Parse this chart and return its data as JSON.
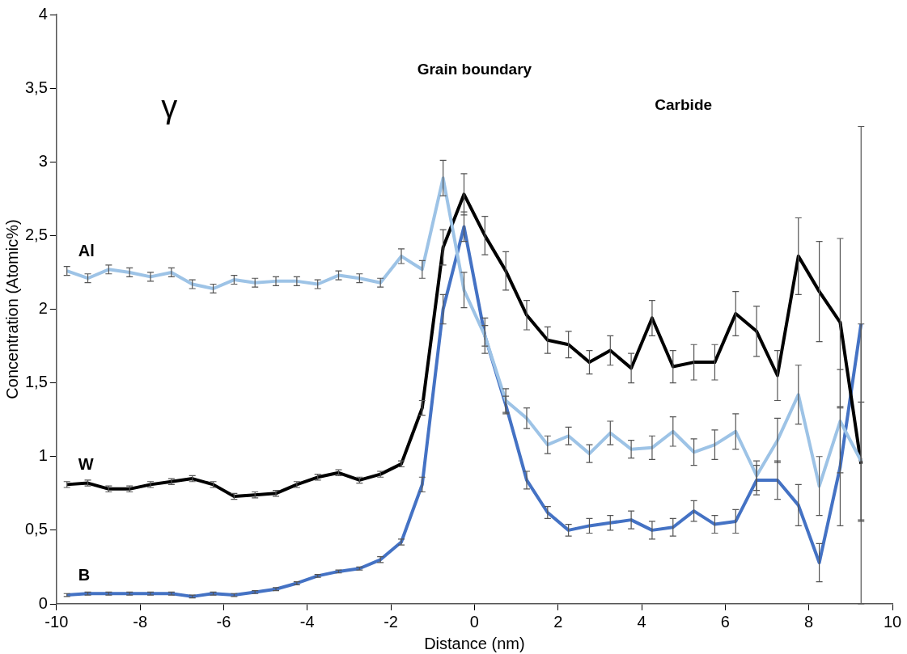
{
  "chart_data": {
    "type": "line",
    "xlabel": "Distance (nm)",
    "ylabel": "Concentration (Atomic%)",
    "annotations": [
      "γ",
      "Grain boundary",
      "Carbide"
    ],
    "x": [
      -9.75,
      -9.25,
      -8.75,
      -8.25,
      -7.75,
      -7.25,
      -6.75,
      -6.25,
      -5.75,
      -5.25,
      -4.75,
      -4.25,
      -3.75,
      -3.25,
      -2.75,
      -2.25,
      -1.75,
      -1.25,
      -0.75,
      -0.25,
      0.25,
      0.75,
      1.25,
      1.75,
      2.25,
      2.75,
      3.25,
      3.75,
      4.25,
      4.75,
      5.25,
      5.75,
      6.25,
      6.75,
      7.25,
      7.75,
      8.25,
      8.75,
      9.25
    ],
    "series": [
      {
        "name": "Al",
        "color": "#9dc3e6",
        "values": [
          2.26,
          2.21,
          2.27,
          2.25,
          2.22,
          2.25,
          2.17,
          2.14,
          2.2,
          2.18,
          2.19,
          2.19,
          2.17,
          2.23,
          2.21,
          2.18,
          2.36,
          2.27,
          2.89,
          2.13,
          1.82,
          1.38,
          1.26,
          1.08,
          1.14,
          1.02,
          1.16,
          1.05,
          1.06,
          1.17,
          1.03,
          1.08,
          1.17,
          0.87,
          1.11,
          1.42,
          0.8,
          1.24,
          0.97
        ],
        "errors": [
          0.03,
          0.03,
          0.03,
          0.03,
          0.03,
          0.03,
          0.03,
          0.03,
          0.03,
          0.03,
          0.03,
          0.03,
          0.03,
          0.03,
          0.03,
          0.03,
          0.05,
          0.06,
          0.12,
          0.12,
          0.12,
          0.08,
          0.07,
          0.06,
          0.06,
          0.06,
          0.08,
          0.06,
          0.08,
          0.1,
          0.09,
          0.1,
          0.12,
          0.1,
          0.15,
          0.2,
          0.2,
          0.35,
          0.4
        ]
      },
      {
        "name": "W",
        "color": "#000000",
        "values": [
          0.81,
          0.82,
          0.78,
          0.78,
          0.81,
          0.83,
          0.85,
          0.81,
          0.73,
          0.74,
          0.75,
          0.81,
          0.86,
          0.89,
          0.84,
          0.88,
          0.95,
          1.33,
          2.42,
          2.78,
          2.5,
          2.26,
          1.96,
          1.79,
          1.76,
          1.64,
          1.72,
          1.6,
          1.94,
          1.61,
          1.64,
          1.64,
          1.97,
          1.85,
          1.55,
          2.36,
          2.12,
          1.91,
          0.95
        ],
        "errors": [
          0.02,
          0.02,
          0.02,
          0.02,
          0.02,
          0.02,
          0.02,
          0.02,
          0.02,
          0.02,
          0.02,
          0.02,
          0.02,
          0.02,
          0.02,
          0.02,
          0.02,
          0.05,
          0.12,
          0.14,
          0.13,
          0.13,
          0.1,
          0.09,
          0.09,
          0.08,
          0.1,
          0.1,
          0.12,
          0.11,
          0.12,
          0.12,
          0.15,
          0.17,
          0.17,
          0.26,
          0.34,
          0.57,
          0.95
        ]
      },
      {
        "name": "B",
        "color": "#4472c4",
        "values": [
          0.06,
          0.07,
          0.07,
          0.07,
          0.07,
          0.07,
          0.05,
          0.07,
          0.06,
          0.08,
          0.1,
          0.14,
          0.19,
          0.22,
          0.24,
          0.3,
          0.42,
          0.81,
          2.0,
          2.56,
          1.82,
          1.35,
          0.84,
          0.62,
          0.5,
          0.53,
          0.55,
          0.57,
          0.5,
          0.52,
          0.63,
          0.54,
          0.56,
          0.84,
          0.84,
          0.67,
          0.28,
          0.93,
          1.9
        ],
        "errors": [
          0.01,
          0.01,
          0.01,
          0.01,
          0.01,
          0.01,
          0.01,
          0.01,
          0.01,
          0.01,
          0.01,
          0.01,
          0.01,
          0.01,
          0.01,
          0.02,
          0.02,
          0.05,
          0.1,
          0.1,
          0.07,
          0.06,
          0.06,
          0.04,
          0.04,
          0.05,
          0.05,
          0.06,
          0.06,
          0.06,
          0.07,
          0.06,
          0.08,
          0.1,
          0.13,
          0.14,
          0.13,
          0.4,
          1.34
        ]
      }
    ],
    "xlim": [
      -10,
      10
    ],
    "xticks": [
      -10,
      -8,
      -6,
      -4,
      -2,
      0,
      2,
      4,
      6,
      8,
      10
    ],
    "ylim": [
      0,
      4
    ],
    "yticks": [
      0,
      {
        "value": 0.5,
        "label": "0,5"
      },
      1,
      {
        "value": 1.5,
        "label": "1,5"
      },
      2,
      {
        "value": 2.5,
        "label": "2,5"
      },
      3,
      {
        "value": 3.5,
        "label": "3,5"
      },
      4
    ],
    "grid": false,
    "legend": false,
    "marker": "none",
    "line_style": "solid"
  }
}
